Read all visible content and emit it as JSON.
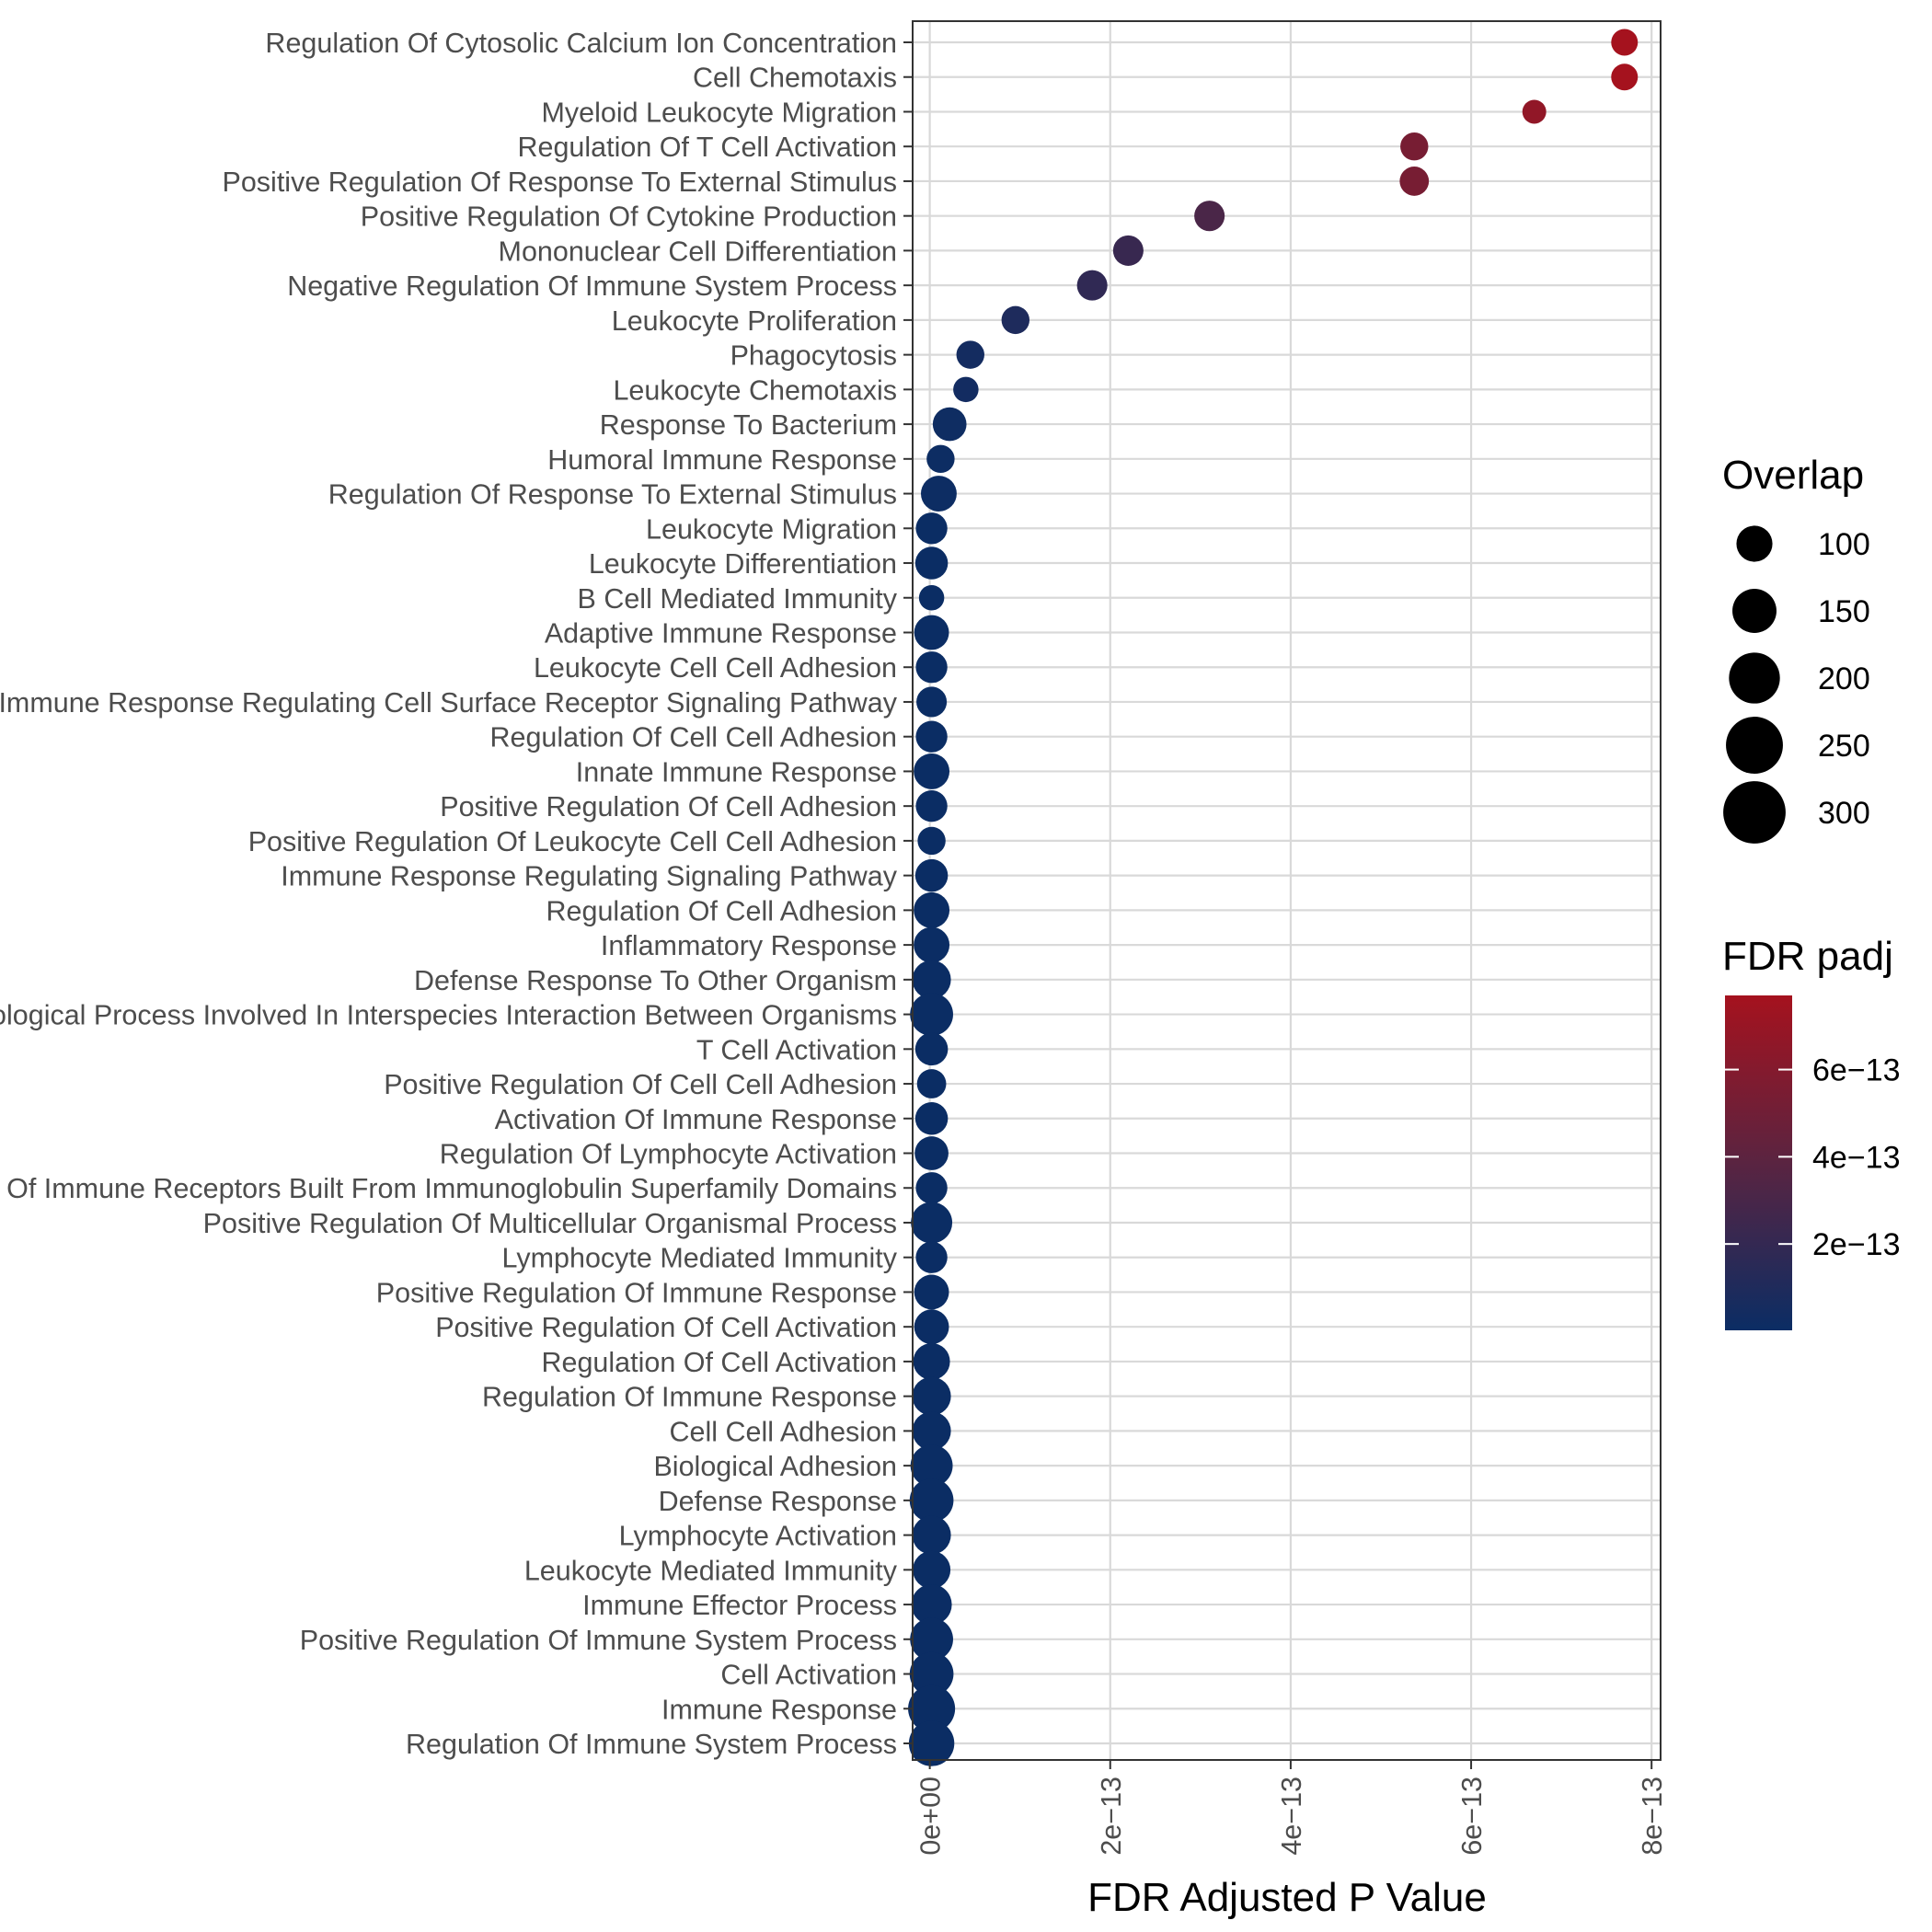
{
  "chart_data": {
    "type": "scatter",
    "title": "",
    "xlabel": "FDR Adjusted P Value",
    "ylabel": "",
    "xlim": [
      -1.9e-14,
      8.1e-13
    ],
    "x_ticks": [
      {
        "value": 0,
        "label": "0e+00"
      },
      {
        "value": 2e-13,
        "label": "2e−13"
      },
      {
        "value": 4e-13,
        "label": "4e−13"
      },
      {
        "value": 6e-13,
        "label": "6e−13"
      },
      {
        "value": 8e-13,
        "label": "8e−13"
      }
    ],
    "grid": true,
    "size_legend": {
      "title": "Overlap",
      "values": [
        100,
        150,
        200,
        250,
        300
      ],
      "labels": [
        "100",
        "150",
        "200",
        "250",
        "300"
      ]
    },
    "color_legend": {
      "title": "FDR padj",
      "range": [
        2e-15,
        7.7e-13
      ],
      "ticks": [
        {
          "value": 2e-13,
          "label": "2e−13"
        },
        {
          "value": 4e-13,
          "label": "4e−13"
        },
        {
          "value": 6e-13,
          "label": "6e−13"
        }
      ],
      "low_color": "#0b2d64",
      "mid_color": "#5a2441",
      "high_color": "#a5121e"
    },
    "points": [
      {
        "term": "Regulation Of Cytosolic Calcium Ion Concentration",
        "x": 7.7e-13,
        "overlap": 100
      },
      {
        "term": "Cell Chemotaxis",
        "x": 7.7e-13,
        "overlap": 100
      },
      {
        "term": "Myeloid Leukocyte Migration",
        "x": 6.7e-13,
        "overlap": 80
      },
      {
        "term": "Regulation Of T Cell Activation",
        "x": 5.37e-13,
        "overlap": 110
      },
      {
        "term": "Positive Regulation Of Response To External Stimulus",
        "x": 5.37e-13,
        "overlap": 120
      },
      {
        "term": "Positive Regulation Of Cytokine Production",
        "x": 3.1e-13,
        "overlap": 130
      },
      {
        "term": "Mononuclear Cell Differentiation",
        "x": 2.2e-13,
        "overlap": 130
      },
      {
        "term": "Negative Regulation Of Immune System Process",
        "x": 1.8e-13,
        "overlap": 130
      },
      {
        "term": "Leukocyte Proliferation",
        "x": 9.5e-14,
        "overlap": 110
      },
      {
        "term": "Phagocytosis",
        "x": 4.5e-14,
        "overlap": 110
      },
      {
        "term": "Leukocyte Chemotaxis",
        "x": 4e-14,
        "overlap": 90
      },
      {
        "term": "Response To Bacterium",
        "x": 2.2e-14,
        "overlap": 160
      },
      {
        "term": "Humoral Immune Response",
        "x": 1.2e-14,
        "overlap": 110
      },
      {
        "term": "Regulation Of Response To External Stimulus",
        "x": 1e-14,
        "overlap": 180
      },
      {
        "term": "Leukocyte Migration",
        "x": 2e-15,
        "overlap": 140
      },
      {
        "term": "Leukocyte Differentiation",
        "x": 2e-15,
        "overlap": 150
      },
      {
        "term": "B Cell Mediated Immunity",
        "x": 2e-15,
        "overlap": 90
      },
      {
        "term": "Adaptive Immune Response",
        "x": 2e-15,
        "overlap": 170
      },
      {
        "term": "Leukocyte Cell Cell Adhesion",
        "x": 2e-15,
        "overlap": 140
      },
      {
        "term": "Immune Response Regulating Cell Surface Receptor Signaling Pathway",
        "x": 2e-15,
        "overlap": 130
      },
      {
        "term": "Regulation Of Cell Cell Adhesion",
        "x": 2e-15,
        "overlap": 140
      },
      {
        "term": "Innate Immune Response",
        "x": 2e-15,
        "overlap": 180
      },
      {
        "term": "Positive Regulation Of Cell Adhesion",
        "x": 2e-15,
        "overlap": 140
      },
      {
        "term": "Positive Regulation Of Leukocyte Cell Cell Adhesion",
        "x": 2e-15,
        "overlap": 110
      },
      {
        "term": "Immune Response Regulating Signaling Pathway",
        "x": 2e-15,
        "overlap": 150
      },
      {
        "term": "Regulation Of Cell Adhesion",
        "x": 2e-15,
        "overlap": 180
      },
      {
        "term": "Inflammatory Response",
        "x": 2e-15,
        "overlap": 180
      },
      {
        "term": "Defense Response To Other Organism",
        "x": 2e-15,
        "overlap": 210
      },
      {
        "term": "Biological Process Involved In Interspecies Interaction Between Organisms",
        "x": 2e-15,
        "overlap": 260
      },
      {
        "term": "T Cell Activation",
        "x": 2e-15,
        "overlap": 150
      },
      {
        "term": "Positive Regulation Of Cell Cell Adhesion",
        "x": 2e-15,
        "overlap": 120
      },
      {
        "term": "Activation Of Immune Response",
        "x": 2e-15,
        "overlap": 150
      },
      {
        "term": "Regulation Of Lymphocyte Activation",
        "x": 2e-15,
        "overlap": 160
      },
      {
        "term": "Adaptive Immune Response Based On Somatic Recombination Of Immune Receptors Built From Immunoglobulin Superfamily Domains",
        "x": 2e-15,
        "overlap": 140
      },
      {
        "term": "Positive Regulation Of Multicellular Organismal Process",
        "x": 2e-15,
        "overlap": 240
      },
      {
        "term": "Lymphocyte Mediated Immunity",
        "x": 2e-15,
        "overlap": 140
      },
      {
        "term": "Positive Regulation Of Immune Response",
        "x": 2e-15,
        "overlap": 170
      },
      {
        "term": "Positive Regulation Of Cell Activation",
        "x": 2e-15,
        "overlap": 170
      },
      {
        "term": "Regulation Of Cell Activation",
        "x": 2e-15,
        "overlap": 190
      },
      {
        "term": "Regulation Of Immune Response",
        "x": 2e-15,
        "overlap": 210
      },
      {
        "term": "Cell Cell Adhesion",
        "x": 2e-15,
        "overlap": 210
      },
      {
        "term": "Biological Adhesion",
        "x": 2e-15,
        "overlap": 250
      },
      {
        "term": "Defense Response",
        "x": 2e-15,
        "overlap": 270
      },
      {
        "term": "Lymphocyte Activation",
        "x": 2e-15,
        "overlap": 210
      },
      {
        "term": "Leukocyte Mediated Immunity",
        "x": 2e-15,
        "overlap": 200
      },
      {
        "term": "Immune Effector Process",
        "x": 2e-15,
        "overlap": 230
      },
      {
        "term": "Positive Regulation Of Immune System Process",
        "x": 2e-15,
        "overlap": 260
      },
      {
        "term": "Cell Activation",
        "x": 2e-15,
        "overlap": 270
      },
      {
        "term": "Immune Response",
        "x": 2e-15,
        "overlap": 310
      },
      {
        "term": "Regulation Of Immune System Process",
        "x": 2e-15,
        "overlap": 290
      }
    ]
  }
}
